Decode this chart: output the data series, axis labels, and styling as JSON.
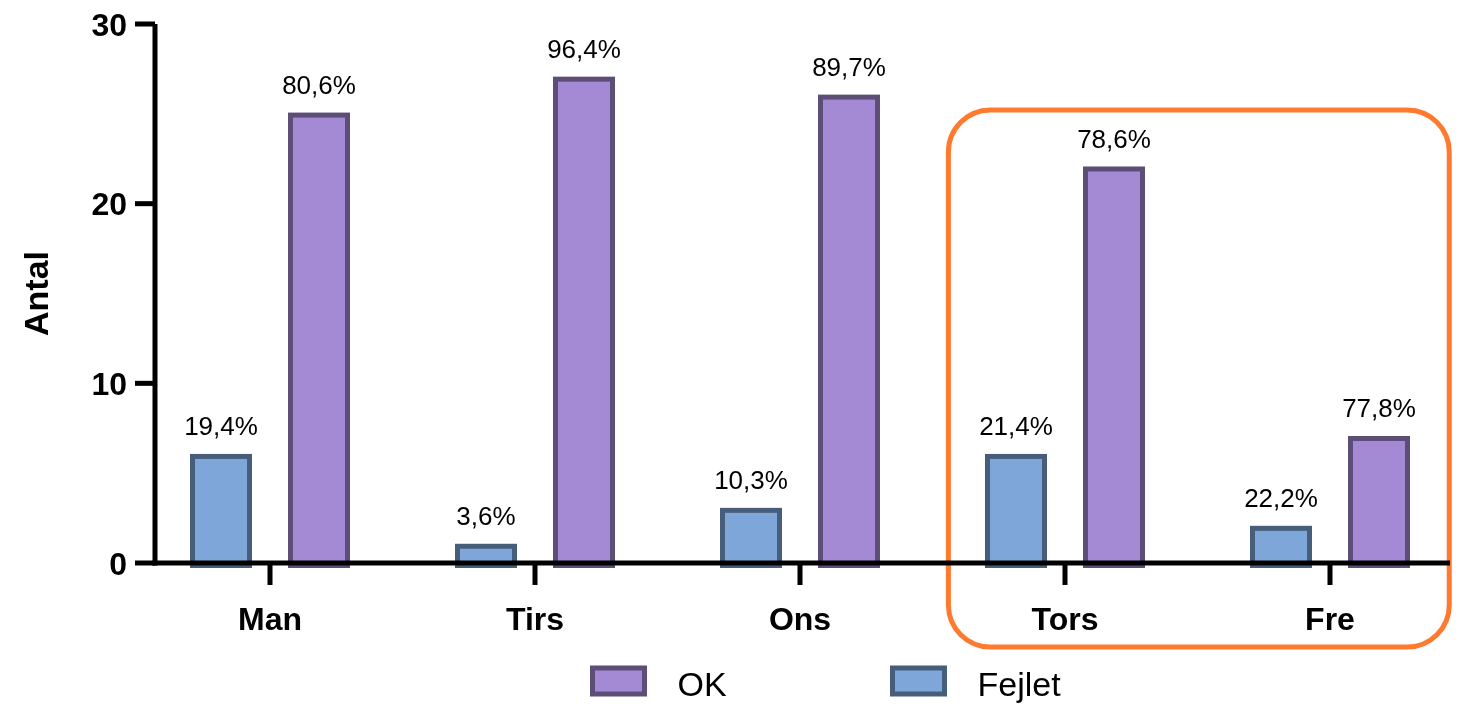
{
  "chart_data": {
    "type": "bar",
    "ylabel": "Antal",
    "categories": [
      "Man",
      "Tirs",
      "Ons",
      "Tors",
      "Fre"
    ],
    "series": [
      {
        "name": "Fejlet",
        "color": "#7ea6d8",
        "values": [
          6,
          1,
          3,
          6,
          2
        ]
      },
      {
        "name": "OK",
        "color": "#a48ad4",
        "values": [
          25,
          27,
          26,
          22,
          7
        ]
      }
    ],
    "annotations": [
      "19,4%",
      "80,6%",
      "3,6%",
      "96,4%",
      "10,3%",
      "89,7%",
      "21,4%",
      "78,6%",
      "22,2%",
      "77,8%"
    ],
    "ylim": [
      0,
      30
    ],
    "yticks": [
      0,
      10,
      20,
      30
    ],
    "grid": false,
    "legend": "bottom"
  }
}
